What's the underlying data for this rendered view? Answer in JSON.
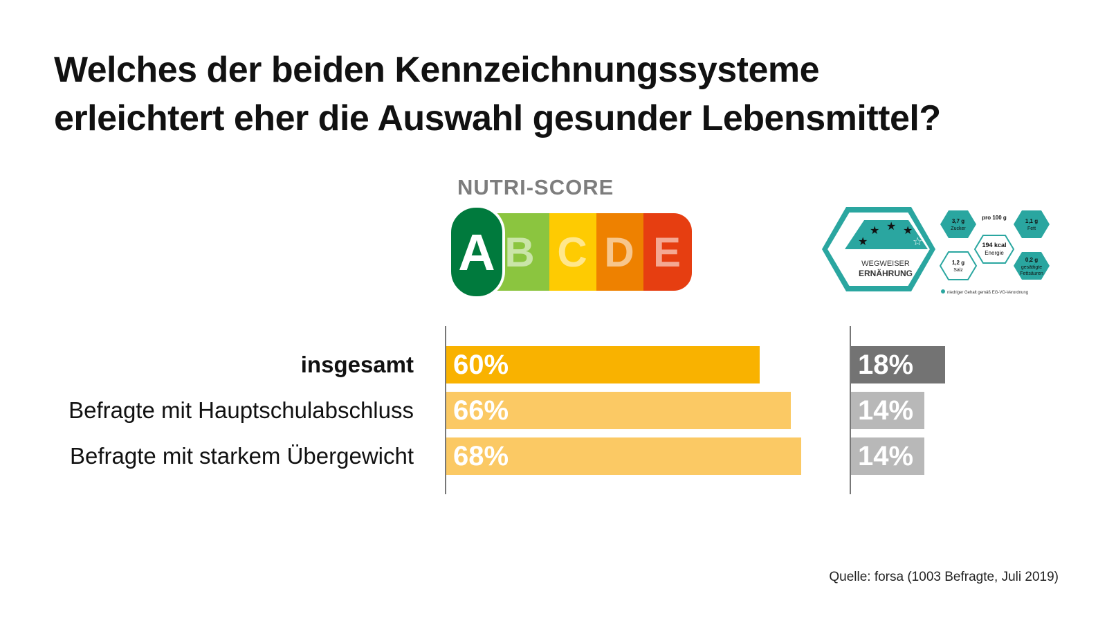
{
  "title": {
    "line1": "Welches der beiden Kennzeichnungssysteme",
    "line2": "erleichtert eher die Auswahl gesunder Lebensmittel?"
  },
  "nutri_score": {
    "label": "NUTRI-SCORE",
    "letters": [
      "A",
      "B",
      "C",
      "D",
      "E"
    ],
    "colors": [
      "#007a3d",
      "#8bc53f",
      "#fecb02",
      "#ee8100",
      "#e63e11"
    ]
  },
  "wegweiser": {
    "line1": "WEGWEISER",
    "line2": "ERNÄHRUNG",
    "zucker_value": "3,7 g",
    "zucker_label": "Zucker",
    "fett_value": "1,1 g",
    "fett_label": "Fett",
    "per100": "pro 100 g",
    "energy_value": "194 kcal",
    "energy_label": "Energie",
    "salz_value": "1,2 g",
    "salz_label": "Salz",
    "fettsaeuren_value": "0,2 g",
    "fettsaeuren_label1": "gesättigte",
    "fettsaeuren_label2": "Fettsäuren",
    "footnote": "niedriger Gehalt gemäß EG-VO-Verordnung",
    "color": "#2aa6a0"
  },
  "chart_data": {
    "type": "bar",
    "orientation": "horizontal",
    "title": "Welches der beiden Kennzeichnungssysteme erleichtert eher die Auswahl gesunder Lebensmittel?",
    "categories": [
      "insgesamt",
      "Befragte mit Hauptschulabschluss",
      "Befragte mit starkem Übergewicht"
    ],
    "series": [
      {
        "name": "NUTRI-SCORE",
        "values": [
          60,
          66,
          68
        ],
        "labels": [
          "60%",
          "66%",
          "68%"
        ],
        "colors": [
          "#f9b200",
          "#fbc964",
          "#fbc964"
        ]
      },
      {
        "name": "WEGWEISER ERNÄHRUNG",
        "values": [
          18,
          14,
          14
        ],
        "labels": [
          "18%",
          "14%",
          "14%"
        ],
        "colors": [
          "#737373",
          "#b8b8b8",
          "#b8b8b8"
        ]
      }
    ],
    "unit": "%",
    "grid": false
  },
  "source": "Quelle: forsa (1003 Befragte, Juli 2019)"
}
